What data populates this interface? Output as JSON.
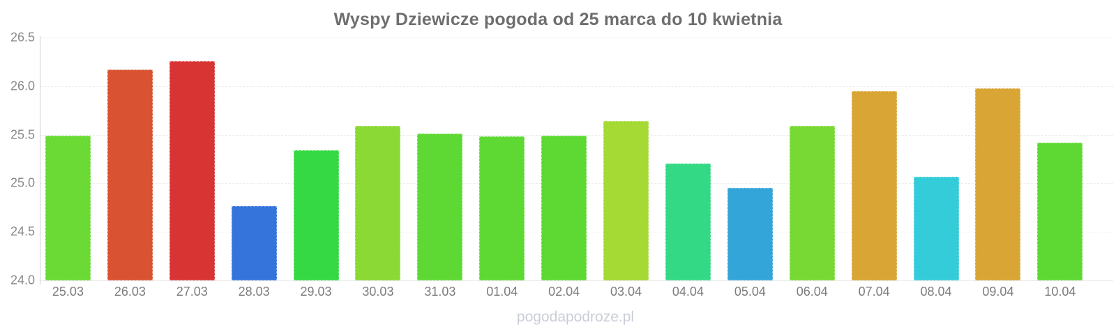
{
  "title": "Wyspy Dziewicze pogoda od 25 marca do 10 kwietnia",
  "watermark": "pogodapodroze.pl",
  "chart_data": {
    "type": "bar",
    "title": "Wyspy Dziewicze pogoda od 25 marca do 10 kwietnia",
    "categories": [
      "25.03",
      "26.03",
      "27.03",
      "28.03",
      "29.03",
      "30.03",
      "31.03",
      "01.04",
      "02.04",
      "03.04",
      "04.04",
      "05.04",
      "06.04",
      "07.04",
      "08.04",
      "09.04",
      "10.04"
    ],
    "values": [
      25.49,
      26.17,
      26.26,
      24.77,
      25.34,
      25.59,
      25.51,
      25.48,
      25.49,
      25.64,
      25.2,
      24.95,
      25.59,
      25.95,
      25.07,
      25.98,
      25.42
    ],
    "bar_colors": [
      "#6cda34",
      "#d95231",
      "#d93434",
      "#3474db",
      "#34d943",
      "#8ad934",
      "#5ed934",
      "#5ed934",
      "#5ed934",
      "#a5d934",
      "#34d985",
      "#34a5d9",
      "#79d934",
      "#d9a534",
      "#34ccd9",
      "#d9a534",
      "#5ed934"
    ],
    "xlabel": "",
    "ylabel": "",
    "ylim": [
      24.0,
      26.5
    ],
    "yticks": [
      24.0,
      24.5,
      25.0,
      25.5,
      26.0,
      26.5
    ],
    "ytick_labels": [
      "24.0",
      "24.5",
      "25.0",
      "25.5",
      "26.0",
      "26.5"
    ],
    "grid": true,
    "legend_position": "none",
    "axis_color": "#cfcfcf",
    "grid_color": "#ececec",
    "title_color": "#6e6e6e",
    "tick_label_color": "#8a8a8a",
    "watermark_color": "#c9ced6"
  }
}
